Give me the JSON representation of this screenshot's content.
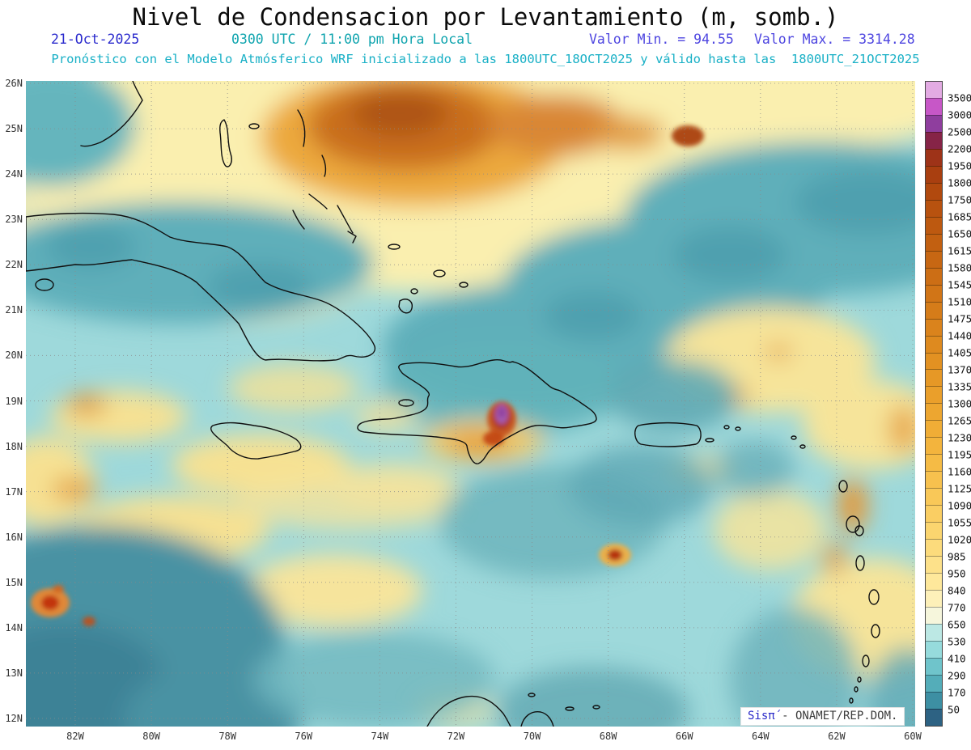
{
  "header": {
    "title": "Nivel de Condensacion por Levantamiento (m, somb.)",
    "date": "21-Oct-2025",
    "time": "0300 UTC / 11:00 pm Hora Local",
    "min_label": "Valor Min. = 94.55",
    "max_label": "Valor Max. = 3314.28",
    "value_min": 94.55,
    "value_max": 3314.28,
    "forecast_line": "Pronóstico con el Modelo Atmósferico WRF inicializado a las 1800UTC_18OCT2025 y válido hasta las  1800UTC_21OCT2025"
  },
  "map": {
    "lat_ticks": [
      "26N",
      "25N",
      "24N",
      "23N",
      "22N",
      "21N",
      "20N",
      "19N",
      "18N",
      "17N",
      "16N",
      "15N",
      "14N",
      "13N",
      "12N"
    ],
    "lon_ticks": [
      "82W",
      "80W",
      "78W",
      "76W",
      "74W",
      "72W",
      "70W",
      "68W",
      "66W",
      "64W",
      "62W",
      "60W"
    ]
  },
  "colorbar": {
    "units": "m",
    "labels": [
      "3500",
      "3000",
      "2500",
      "2200",
      "1950",
      "1800",
      "1750",
      "1685",
      "1650",
      "1615",
      "1580",
      "1545",
      "1510",
      "1475",
      "1440",
      "1405",
      "1370",
      "1335",
      "1300",
      "1265",
      "1230",
      "1195",
      "1160",
      "1125",
      "1090",
      "1055",
      "1020",
      "985",
      "950",
      "840",
      "770",
      "650",
      "530",
      "410",
      "290",
      "170",
      "50"
    ],
    "colors": [
      "#E3ABE3",
      "#C757C7",
      "#8F3E9E",
      "#862447",
      "#9E3318",
      "#A93F10",
      "#B1490E",
      "#B8520F",
      "#BD5910",
      "#C26011",
      "#C76713",
      "#CC6E15",
      "#D17517",
      "#D57C19",
      "#DA831C",
      "#DE8A1F",
      "#E29122",
      "#E69826",
      "#EA9F2B",
      "#EDA630",
      "#F0AD36",
      "#F3B43D",
      "#F5BB45",
      "#F7C14E",
      "#F9C858",
      "#FACE63",
      "#FBD56F",
      "#FCDB7C",
      "#FDE18A",
      "#FEE89B",
      "#FDF0B9",
      "#F6F6DC",
      "#BCE8E4",
      "#96DBDC",
      "#6FC4CB",
      "#54ADB9",
      "#3D8FA3",
      "#2D6283"
    ]
  },
  "watermark": {
    "brand": "Sisπ́",
    "rest": " - ONAMET/REP.DOM."
  }
}
